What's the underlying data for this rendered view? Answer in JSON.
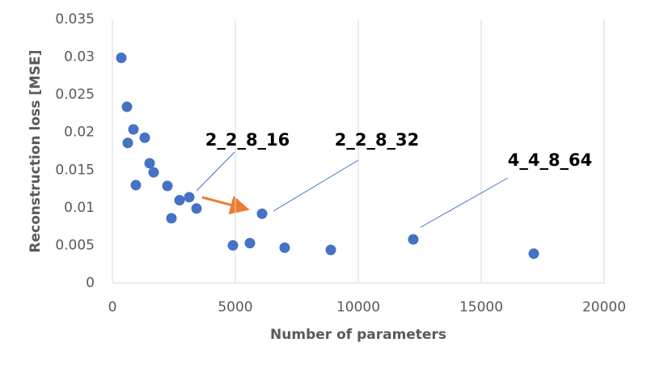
{
  "chart_data": {
    "type": "scatter",
    "x_label": "Number of parameters",
    "y_label": "Reconstruction loss [MSE]",
    "color": "#4472c4",
    "grid": true,
    "x": [
      362,
      592,
      855,
      625,
      954,
      1316,
      1513,
      1678,
      2237,
      2401,
      2730,
      3125,
      3421,
      4901,
      5592,
      6086,
      7007,
      8882,
      12237,
      17138
    ],
    "values": [
      0.0299,
      0.0234,
      0.0204,
      0.0186,
      0.013,
      0.0193,
      0.0159,
      0.0147,
      0.0129,
      0.0086,
      0.011,
      0.0114,
      0.0099,
      0.005,
      0.0053,
      0.0092,
      0.0047,
      0.0044,
      0.0058,
      0.0039
    ],
    "xlim": [
      0,
      20000
    ],
    "xticks": [
      0,
      5000,
      10000,
      15000,
      20000
    ],
    "ylim": [
      0,
      0.035
    ],
    "yticks": [
      0,
      0.005,
      0.01,
      0.015,
      0.02,
      0.025,
      0.03,
      0.035
    ],
    "annotations": [
      "2_2_8_16",
      "2_2_8_32",
      "4_4_8_64"
    ]
  }
}
